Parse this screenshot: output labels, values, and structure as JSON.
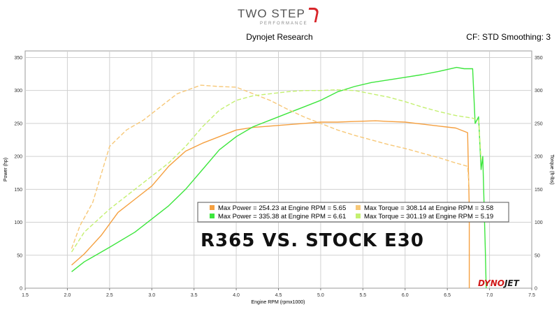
{
  "header": {
    "logo_main": "TWO STEP",
    "logo_sub": "PERFORMANCE",
    "subtitle": "Dynojet Research",
    "cf": "CF: STD Smoothing: 3"
  },
  "overlay_title": "R365 VS. STOCK E30",
  "brand_left": "DYNO",
  "brand_right": "JET",
  "colors": {
    "power_e30": "#f5a040",
    "power_r365": "#3de63d",
    "torque_e30": "#f7c878",
    "torque_r365": "#c4f070",
    "grid": "#d0d0d0",
    "plot_bg": "#ffffff",
    "brand_red": "#d01818"
  },
  "chart_data": {
    "type": "line",
    "title": "",
    "xlabel": "Engine RPM (rpmx1000)",
    "ylabel_left": "Power (hp)",
    "ylabel_right": "Torque (ft-lbs)",
    "xlim": [
      1.5,
      7.5
    ],
    "ylim": [
      0,
      360
    ],
    "x_ticks": [
      1.5,
      2.0,
      2.5,
      3.0,
      3.5,
      4.0,
      4.5,
      5.0,
      5.5,
      6.0,
      6.5,
      7.0,
      7.5
    ],
    "y_ticks": [
      0,
      50,
      100,
      150,
      200,
      250,
      300,
      350
    ],
    "grid": true,
    "series": [
      {
        "key": "power_e30",
        "legend": "Max Power = 254.23 at Engine RPM = 5.65",
        "dashed": false,
        "x": [
          2.05,
          2.2,
          2.4,
          2.6,
          2.8,
          3.0,
          3.2,
          3.4,
          3.6,
          3.8,
          4.0,
          4.2,
          4.4,
          4.6,
          4.8,
          5.0,
          5.2,
          5.4,
          5.65,
          5.8,
          6.0,
          6.2,
          6.4,
          6.6,
          6.74,
          6.76,
          6.76
        ],
        "y": [
          35,
          52,
          80,
          115,
          135,
          155,
          185,
          208,
          220,
          230,
          240,
          244,
          246,
          248,
          250,
          252,
          252,
          253,
          254,
          253,
          252,
          249,
          246,
          243,
          236,
          120,
          0
        ]
      },
      {
        "key": "power_r365",
        "legend": "Max Power = 335.38 at Engine RPM = 6.61",
        "dashed": false,
        "x": [
          2.05,
          2.2,
          2.5,
          2.8,
          3.0,
          3.2,
          3.4,
          3.6,
          3.8,
          4.0,
          4.2,
          4.4,
          4.6,
          4.8,
          5.0,
          5.2,
          5.4,
          5.6,
          5.8,
          6.0,
          6.2,
          6.4,
          6.61,
          6.7,
          6.8,
          6.83,
          6.87,
          6.9,
          6.92,
          6.95,
          6.96
        ],
        "y": [
          25,
          40,
          62,
          85,
          105,
          125,
          150,
          180,
          210,
          230,
          245,
          255,
          265,
          275,
          285,
          298,
          306,
          312,
          316,
          320,
          324,
          329,
          335,
          333,
          333,
          250,
          260,
          180,
          200,
          60,
          0
        ]
      },
      {
        "key": "torque_e30",
        "legend": "Max Torque = 308.14 at Engine RPM = 3.58",
        "dashed": true,
        "x": [
          2.05,
          2.15,
          2.3,
          2.5,
          2.7,
          2.9,
          3.1,
          3.3,
          3.58,
          3.8,
          4.0,
          4.2,
          4.4,
          4.6,
          4.8,
          5.0,
          5.2,
          5.4,
          5.6,
          5.8,
          6.0,
          6.2,
          6.4,
          6.6,
          6.74,
          6.76
        ],
        "y": [
          60,
          95,
          130,
          215,
          240,
          255,
          275,
          295,
          308,
          306,
          305,
          295,
          285,
          272,
          260,
          250,
          240,
          232,
          225,
          218,
          212,
          205,
          198,
          190,
          185,
          150
        ]
      },
      {
        "key": "torque_r365",
        "legend": "Max Torque = 301.19 at Engine RPM = 5.19",
        "dashed": true,
        "x": [
          2.05,
          2.2,
          2.5,
          2.8,
          3.0,
          3.2,
          3.4,
          3.6,
          3.8,
          4.0,
          4.2,
          4.4,
          4.6,
          4.8,
          5.0,
          5.19,
          5.4,
          5.6,
          5.8,
          6.0,
          6.2,
          6.4,
          6.6,
          6.8,
          6.87,
          6.9
        ],
        "y": [
          55,
          85,
          120,
          150,
          170,
          190,
          215,
          245,
          270,
          285,
          292,
          295,
          298,
          300,
          300,
          301,
          300,
          295,
          290,
          283,
          275,
          268,
          262,
          258,
          255,
          195
        ]
      }
    ],
    "legend_order": [
      "power_e30",
      "torque_e30",
      "power_r365",
      "torque_r365"
    ]
  }
}
